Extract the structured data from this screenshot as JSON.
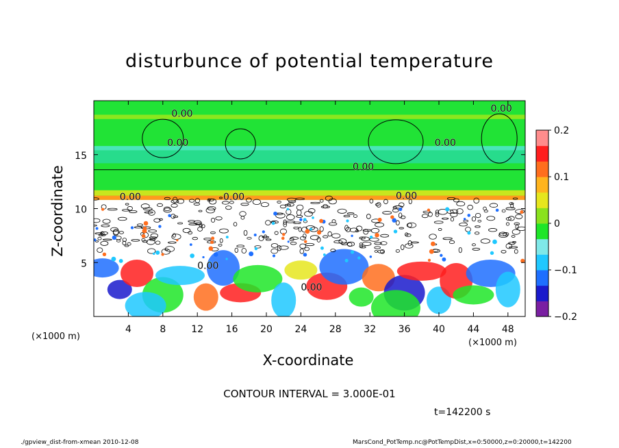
{
  "chart_data": {
    "type": "heatmap",
    "title": "disturbunce of potential temperature",
    "xlabel": "X-coordinate",
    "ylabel": "Z-coordinate",
    "x_unit_label": "(×1000 m)",
    "y_unit_label": "(×1000 m)",
    "xlim": [
      0,
      50
    ],
    "ylim": [
      0,
      20
    ],
    "x_ticks": [
      4,
      8,
      12,
      16,
      20,
      24,
      28,
      32,
      36,
      40,
      44,
      48
    ],
    "y_ticks": [
      5,
      10,
      15
    ],
    "colorbar": {
      "min": -0.2,
      "max": 0.2,
      "ticks": [
        0.2,
        0.1,
        0,
        -0.1,
        -0.2
      ],
      "tick_labels": [
        "0.2",
        "0.1",
        "0",
        "−0.1",
        "−0.2"
      ],
      "colors": [
        "#7a1fa2",
        "#1a1acc",
        "#1e6fff",
        "#1fc8ff",
        "#7fe8e8",
        "#1ee628",
        "#8ae21e",
        "#e6e61e",
        "#ffb41e",
        "#ff6e1e",
        "#ff1e1e",
        "#ff8c8c"
      ]
    },
    "contour_labels": [
      "0.00",
      "0.00",
      "0.00",
      "0.00",
      "0.00",
      "0.00",
      "0.00",
      "0.00",
      "0.00",
      "0.00"
    ],
    "contour_interval_text": "CONTOUR INTERVAL = 3.000E-01",
    "time_text": "t=142200 s"
  },
  "footer": {
    "left": "./gpview_dist-from-xmean  2010-12-08",
    "right": "MarsCond_PotTemp.nc@PotTempDist,x=0:50000,z=0:20000,t=142200"
  }
}
